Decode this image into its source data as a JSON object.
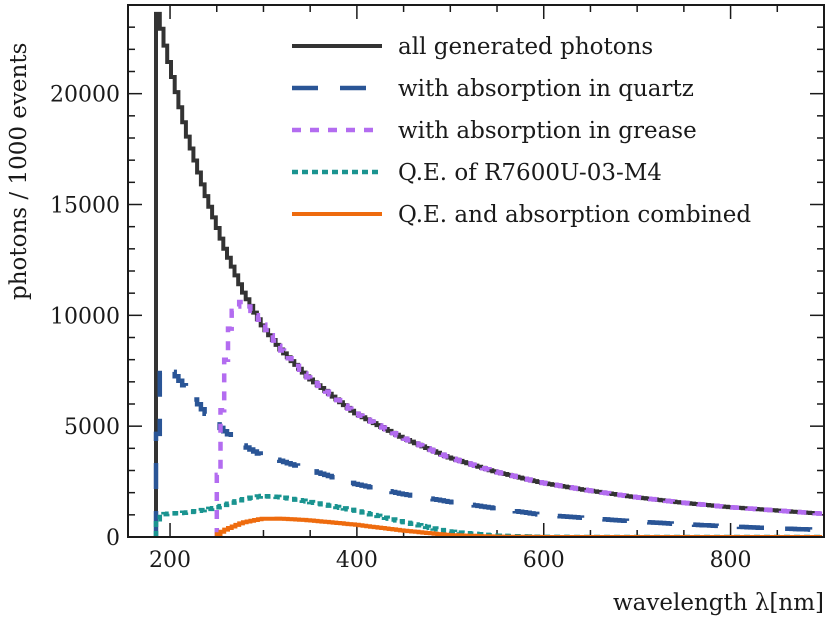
{
  "chart_data": {
    "type": "line",
    "xlabel": "wavelength λ[nm]",
    "ylabel": "photons / 1000 events",
    "xlim": [
      155,
      900
    ],
    "ylim": [
      0,
      24000
    ],
    "x_ticks": [
      200,
      400,
      600,
      800
    ],
    "y_ticks": [
      0,
      5000,
      10000,
      15000,
      20000
    ],
    "grid": false,
    "legend_position": "top-right",
    "series": [
      {
        "name": "all generated photons",
        "color": "#333333",
        "style": "solid",
        "x": [
          185,
          188,
          190,
          200,
          220,
          240,
          260,
          280,
          300,
          320,
          350,
          400,
          450,
          500,
          550,
          600,
          650,
          700,
          750,
          800,
          850,
          900
        ],
        "y": [
          0,
          23700,
          23500,
          21600,
          18200,
          15500,
          13100,
          11100,
          9600,
          8500,
          7200,
          5600,
          4500,
          3600,
          2950,
          2450,
          2100,
          1800,
          1550,
          1350,
          1200,
          1050
        ]
      },
      {
        "name": "with absorption in quartz",
        "color": "#2a5596",
        "style": "long-dash",
        "x": [
          185,
          188,
          190,
          193,
          200,
          220,
          240,
          260,
          280,
          300,
          320,
          350,
          400,
          450,
          500,
          550,
          600,
          650,
          700,
          750,
          800,
          850,
          900
        ],
        "y": [
          0,
          2800,
          6500,
          7400,
          7700,
          6700,
          5600,
          4800,
          4150,
          3700,
          3450,
          3050,
          2400,
          1950,
          1600,
          1300,
          1000,
          850,
          700,
          580,
          480,
          390,
          320
        ]
      },
      {
        "name": "with absorption in grease",
        "color": "#b36cf0",
        "style": "short-dash",
        "x": [
          250,
          255,
          260,
          265,
          270,
          280,
          300,
          320,
          350,
          400,
          450,
          500,
          550,
          600,
          650,
          700,
          750,
          800,
          850,
          900
        ],
        "y": [
          0,
          3500,
          7200,
          9200,
          10200,
          10700,
          9700,
          8500,
          7200,
          5600,
          4500,
          3600,
          2950,
          2450,
          2100,
          1800,
          1550,
          1350,
          1200,
          1050
        ]
      },
      {
        "name": "Q.E. of R7600U-03-M4",
        "color": "#1a9490",
        "style": "dotted",
        "x": [
          185,
          190,
          200,
          220,
          250,
          280,
          300,
          320,
          350,
          400,
          450,
          500,
          550,
          600,
          650,
          700,
          750,
          800,
          850,
          900
        ],
        "y": [
          0,
          1000,
          1050,
          1100,
          1300,
          1700,
          1850,
          1800,
          1600,
          1200,
          700,
          250,
          60,
          5,
          0,
          0,
          0,
          0,
          0,
          0
        ]
      },
      {
        "name": "Q.E. and absorption combined",
        "color": "#ee6b0e",
        "style": "solid",
        "x": [
          250,
          260,
          280,
          300,
          320,
          350,
          400,
          450,
          500,
          550,
          600,
          650,
          700,
          750,
          800,
          850,
          900
        ],
        "y": [
          0,
          300,
          650,
          820,
          830,
          760,
          560,
          300,
          90,
          20,
          2,
          0,
          0,
          0,
          0,
          0,
          0
        ]
      }
    ]
  }
}
